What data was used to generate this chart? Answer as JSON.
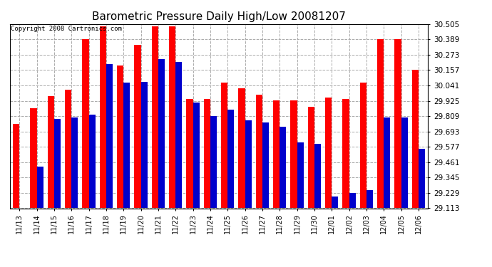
{
  "title": "Barometric Pressure Daily High/Low 20081207",
  "copyright": "Copyright 2008 Cartronics.com",
  "dates": [
    "11/13",
    "11/14",
    "11/15",
    "11/16",
    "11/17",
    "11/18",
    "11/19",
    "11/20",
    "11/21",
    "11/22",
    "11/23",
    "11/24",
    "11/25",
    "11/26",
    "11/27",
    "11/28",
    "11/29",
    "11/30",
    "12/01",
    "12/02",
    "12/03",
    "12/04",
    "12/05",
    "12/06"
  ],
  "highs": [
    29.75,
    29.87,
    29.96,
    30.01,
    30.39,
    30.49,
    30.19,
    30.35,
    30.49,
    30.49,
    29.94,
    29.94,
    30.06,
    30.02,
    29.97,
    29.93,
    29.93,
    29.88,
    29.95,
    29.94,
    30.06,
    30.39,
    30.39,
    30.16
  ],
  "lows": [
    29.113,
    29.43,
    29.79,
    29.8,
    29.82,
    30.2,
    30.06,
    30.07,
    30.24,
    30.22,
    29.91,
    29.81,
    29.86,
    29.78,
    29.76,
    29.73,
    29.61,
    29.6,
    29.2,
    29.23,
    29.25,
    29.8,
    29.8,
    29.56
  ],
  "high_color": "#ff0000",
  "low_color": "#0000cc",
  "bg_color": "#ffffff",
  "plot_bg_color": "#ffffff",
  "grid_color": "#aaaaaa",
  "ymin": 29.113,
  "ymax": 30.505,
  "yticks": [
    29.113,
    29.229,
    29.345,
    29.461,
    29.577,
    29.693,
    29.809,
    29.925,
    30.041,
    30.157,
    30.273,
    30.389,
    30.505
  ],
  "title_fontsize": 11,
  "copyright_fontsize": 6.5,
  "bar_width": 0.38
}
